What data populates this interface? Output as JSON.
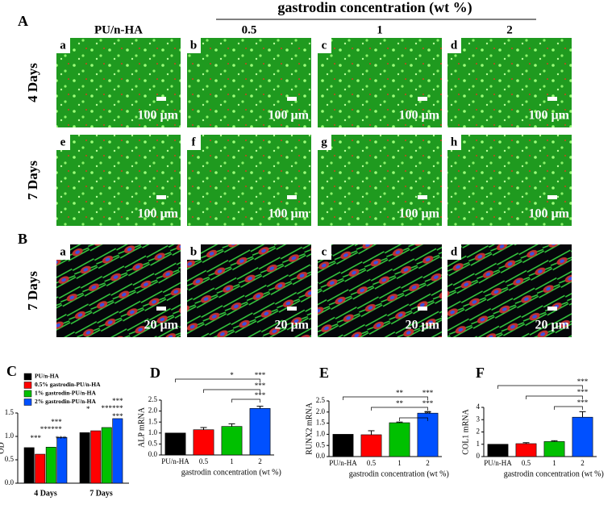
{
  "figure": {
    "panel_labels": [
      "A",
      "B"
    ],
    "header": "gastrodin concentration (wt %)",
    "columns": [
      "PU/n-HA",
      "0.5",
      "1",
      "2"
    ],
    "rows": [
      "4 Days",
      "7 Days",
      "7 Days"
    ],
    "tile_letters": [
      [
        "a",
        "b",
        "c",
        "d"
      ],
      [
        "e",
        "f",
        "g",
        "h"
      ],
      [
        "a",
        "b",
        "c",
        "d"
      ]
    ],
    "scale_bars": [
      [
        "100 µm",
        "100 µm",
        "100 µm",
        "100 µm"
      ],
      [
        "100 µm",
        "100 µm",
        "100 µm",
        "100 µm"
      ],
      [
        "20 µm",
        "20 µm",
        "20 µm",
        "20 µm"
      ]
    ]
  },
  "chart_data": [
    {
      "type": "grouped_bar",
      "panel": "C",
      "ylabel": "OD",
      "categories": [
        "4 Days",
        "7 Days"
      ],
      "series": [
        {
          "name": "PU/n-HA",
          "color": "#000000",
          "values": [
            0.76,
            1.08
          ]
        },
        {
          "name": "0.5% gastrodin-PU/n-HA",
          "color": "#ff0000",
          "values": [
            0.62,
            1.12
          ]
        },
        {
          "name": "1% gastrodin-PU/n-HA",
          "color": "#00c000",
          "values": [
            0.77,
            1.19
          ]
        },
        {
          "name": "2% gastrodin-PU/n-HA",
          "color": "#0050ff",
          "values": [
            0.98,
            1.38
          ]
        }
      ],
      "ylim": [
        0,
        1.5
      ],
      "yticks": [
        {
          "value": 0,
          "label": "0.0"
        },
        {
          "value": 0.5,
          "label": "0.5"
        },
        {
          "value": 1,
          "label": "1.0"
        },
        {
          "value": 1.5,
          "label": "1.5"
        }
      ],
      "annotations": [
        "***",
        "***",
        "***",
        "***",
        "***",
        "*",
        "***",
        "***",
        "***",
        "***"
      ]
    },
    {
      "type": "bar",
      "panel": "D",
      "ylabel": "ALP mRNA",
      "xlabel": "gastrodin concentration (wt %)",
      "categories": [
        "PU/n-HA",
        "0.5",
        "1",
        "2"
      ],
      "values": [
        1.0,
        1.15,
        1.3,
        2.12
      ],
      "errors": [
        0,
        0.1,
        0.12,
        0.1
      ],
      "colors": [
        "#000000",
        "#ff0000",
        "#00c000",
        "#0050ff"
      ],
      "ylim": [
        0,
        2.5
      ],
      "yticks": [
        {
          "value": 0,
          "label": "0.0"
        },
        {
          "value": 0.5,
          "label": "0.5"
        },
        {
          "value": 1,
          "label": "1.0"
        },
        {
          "value": 1.5,
          "label": "1.5"
        },
        {
          "value": 2,
          "label": "2.0"
        },
        {
          "value": 2.5,
          "label": "2.5"
        }
      ],
      "annotations": [
        "*",
        "***",
        "***",
        "***"
      ]
    },
    {
      "type": "bar",
      "panel": "E",
      "ylabel": "RUNX2 mRNA",
      "xlabel": "gastrodin concentration (wt %)",
      "categories": [
        "PU/n-HA",
        "0.5",
        "1",
        "2"
      ],
      "values": [
        1.0,
        0.98,
        1.52,
        1.95
      ],
      "errors": [
        0,
        0.18,
        0.03,
        0.07
      ],
      "colors": [
        "#000000",
        "#ff0000",
        "#00c000",
        "#0050ff"
      ],
      "ylim": [
        0,
        2.5
      ],
      "yticks": [
        {
          "value": 0,
          "label": "0.0"
        },
        {
          "value": 0.5,
          "label": "0.5"
        },
        {
          "value": 1,
          "label": "1.0"
        },
        {
          "value": 1.5,
          "label": "1.5"
        },
        {
          "value": 2,
          "label": "2.0"
        },
        {
          "value": 2.5,
          "label": "2.5"
        }
      ],
      "annotations": [
        "**",
        "***",
        "**",
        "***",
        "**"
      ]
    },
    {
      "type": "bar",
      "panel": "F",
      "ylabel": "COL1 mRNA",
      "xlabel": "gastrodin concentration (wt %)",
      "categories": [
        "PU/n-HA",
        "0.5",
        "1",
        "2"
      ],
      "values": [
        1.0,
        1.05,
        1.22,
        3.2
      ],
      "errors": [
        0,
        0.08,
        0.07,
        0.45
      ],
      "colors": [
        "#000000",
        "#ff0000",
        "#00c000",
        "#0050ff"
      ],
      "ylim": [
        0,
        4
      ],
      "yticks": [
        0,
        1,
        2,
        3,
        4
      ],
      "annotations": [
        "***",
        "***",
        "***"
      ]
    }
  ]
}
